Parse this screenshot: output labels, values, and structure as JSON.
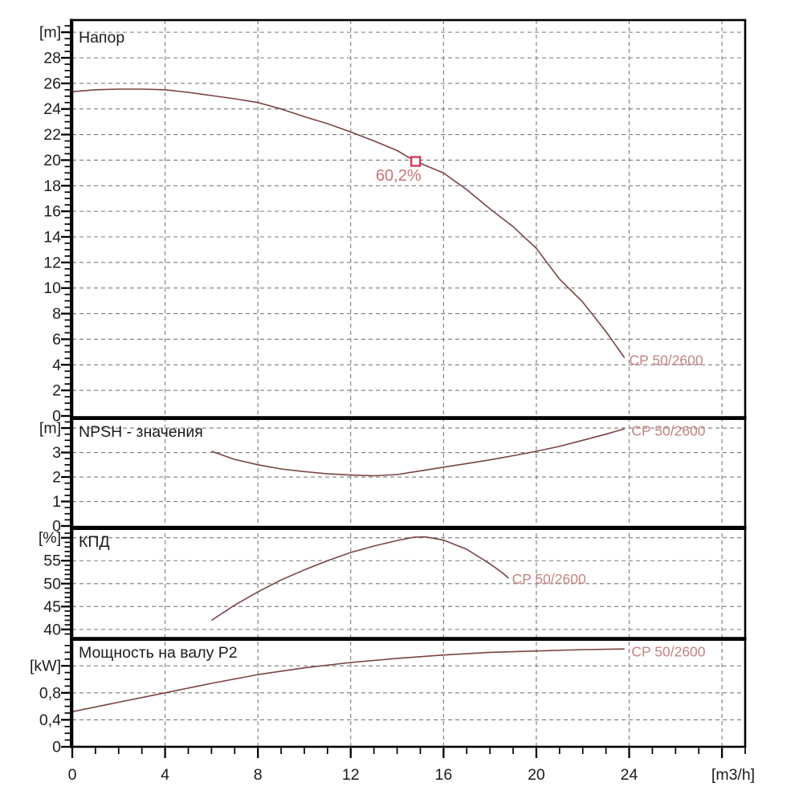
{
  "page": {
    "background": "#ffffff",
    "description": "Pump performance curve sheet CP 50/2600"
  },
  "chart_data": {
    "type": "line",
    "pump_model": "CP 50/2600",
    "x_axis": {
      "label": "[m3/h]",
      "xlim": [
        0,
        29
      ],
      "major_tick_values": [
        0,
        4,
        8,
        12,
        16,
        20,
        24,
        28
      ],
      "major_tick_labels": [
        "0",
        "4",
        "8",
        "12",
        "16",
        "20",
        "24",
        ""
      ],
      "minor_tick_step": 1,
      "grid_values": [
        4,
        8,
        12,
        16,
        20,
        24,
        28
      ]
    },
    "colors": {
      "curve": "#7b4341",
      "curve_label": "#c4837f",
      "marker": "#d23b5c",
      "marker_label": "#cb7273",
      "grid": "#7b7b7b",
      "axis": "#000000",
      "text": "#1c1c1c"
    },
    "panels": [
      {
        "id": "head",
        "title": "Напор",
        "unit_label": "[m]",
        "ylim": [
          0,
          30.95
        ],
        "major_tick_values": [
          0,
          2,
          4,
          6,
          8,
          10,
          12,
          14,
          16,
          18,
          20,
          22,
          24,
          26,
          28,
          30
        ],
        "major_tick_labels": [
          "0",
          "2",
          "4",
          "6",
          "8",
          "10",
          "12",
          "14",
          "16",
          "18",
          "20",
          "22",
          "24",
          "26",
          "28",
          "[m]"
        ],
        "minor_tick_step": 0.5,
        "grid_values": [
          2,
          4,
          6,
          8,
          10,
          12,
          14,
          16,
          18,
          20,
          22,
          24,
          26,
          28,
          30
        ],
        "series": [
          {
            "name": "CP 50/2600",
            "points": [
              [
                0,
                25.35
              ],
              [
                1,
                25.5
              ],
              [
                2,
                25.55
              ],
              [
                3,
                25.55
              ],
              [
                4,
                25.5
              ],
              [
                5,
                25.3
              ],
              [
                6,
                25.05
              ],
              [
                7,
                24.8
              ],
              [
                8,
                24.5
              ],
              [
                9,
                24.0
              ],
              [
                10,
                23.4
              ],
              [
                11,
                22.85
              ],
              [
                12,
                22.2
              ],
              [
                13,
                21.5
              ],
              [
                14,
                20.75
              ],
              [
                14.8,
                19.9
              ],
              [
                16,
                19.0
              ],
              [
                17,
                17.7
              ],
              [
                18,
                16.2
              ],
              [
                19,
                14.8
              ],
              [
                20,
                13.1
              ],
              [
                21,
                10.7
              ],
              [
                22,
                8.9
              ],
              [
                23,
                6.6
              ],
              [
                23.8,
                4.55
              ]
            ],
            "label": {
              "text": "CP 50/2600",
              "x": 24.0,
              "y": 4.3
            }
          }
        ],
        "marker": {
          "x": 14.8,
          "y": 19.9,
          "label": "60,2%"
        }
      },
      {
        "id": "npsh",
        "title": "NPSH - значения",
        "unit_label": "[m]",
        "ylim": [
          0,
          4.33
        ],
        "major_tick_values": [
          0,
          1,
          2,
          3,
          4
        ],
        "major_tick_labels": [
          "0",
          "1",
          "2",
          "3",
          "[m]"
        ],
        "minor_tick_step": 0.25,
        "grid_values": [
          1,
          2,
          3,
          4
        ],
        "series": [
          {
            "name": "CP 50/2600",
            "points": [
              [
                6,
                3.05
              ],
              [
                7,
                2.72
              ],
              [
                8,
                2.5
              ],
              [
                9,
                2.33
              ],
              [
                10,
                2.22
              ],
              [
                11,
                2.13
              ],
              [
                12,
                2.08
              ],
              [
                13,
                2.05
              ],
              [
                14,
                2.1
              ],
              [
                15,
                2.25
              ],
              [
                16,
                2.4
              ],
              [
                17,
                2.55
              ],
              [
                18,
                2.7
              ],
              [
                19,
                2.87
              ],
              [
                20,
                3.05
              ],
              [
                21,
                3.25
              ],
              [
                22,
                3.5
              ],
              [
                23,
                3.75
              ],
              [
                23.8,
                3.97
              ]
            ],
            "label": {
              "text": "CP 50/2600",
              "x": 24.1,
              "y": 3.85
            }
          }
        ],
        "marker": null
      },
      {
        "id": "efficiency",
        "title": "КПД",
        "unit_label": "[%]",
        "ylim": [
          38.05,
          61.7
        ],
        "major_tick_values": [
          40,
          45,
          50,
          55,
          60
        ],
        "major_tick_labels": [
          "40",
          "45",
          "50",
          "55",
          "[%]"
        ],
        "minor_tick_step": 1,
        "grid_values": [
          40,
          45,
          50,
          55,
          60
        ],
        "series": [
          {
            "name": "CP 50/2600",
            "points": [
              [
                6,
                42
              ],
              [
                7,
                45.3
              ],
              [
                8,
                48.2
              ],
              [
                9,
                50.8
              ],
              [
                10,
                53.0
              ],
              [
                11,
                55.0
              ],
              [
                12,
                56.8
              ],
              [
                13,
                58.2
              ],
              [
                14,
                59.4
              ],
              [
                14.7,
                60.1
              ],
              [
                15.2,
                60.2
              ],
              [
                16,
                59.5
              ],
              [
                17,
                57.5
              ],
              [
                18,
                54.3
              ],
              [
                18.5,
                52.5
              ],
              [
                18.8,
                51.2
              ]
            ],
            "label": {
              "text": "CP 50/2600",
              "x": 18.95,
              "y": 50.8
            }
          }
        ],
        "marker": null
      },
      {
        "id": "power",
        "title": "Мощность на валу P2",
        "unit_label": "[kW]",
        "ylim": [
          0,
          1.571
        ],
        "major_tick_values": [
          0,
          0.4,
          0.8,
          1.2
        ],
        "major_tick_labels": [
          "0",
          "0,4",
          "0,8",
          "[kW]"
        ],
        "minor_tick_step": 0.1,
        "grid_values": [
          0.4,
          0.8,
          1.2
        ],
        "series": [
          {
            "name": "CP 50/2600",
            "points": [
              [
                0,
                0.52
              ],
              [
                2,
                0.66
              ],
              [
                4,
                0.8
              ],
              [
                6,
                0.94
              ],
              [
                8,
                1.07
              ],
              [
                10,
                1.17
              ],
              [
                12,
                1.25
              ],
              [
                14,
                1.31
              ],
              [
                16,
                1.36
              ],
              [
                18,
                1.4
              ],
              [
                20,
                1.42
              ],
              [
                22,
                1.44
              ],
              [
                23.8,
                1.45
              ]
            ],
            "label": {
              "text": "CP 50/2600",
              "x": 24.1,
              "y": 1.4
            }
          }
        ],
        "marker": null
      }
    ]
  }
}
